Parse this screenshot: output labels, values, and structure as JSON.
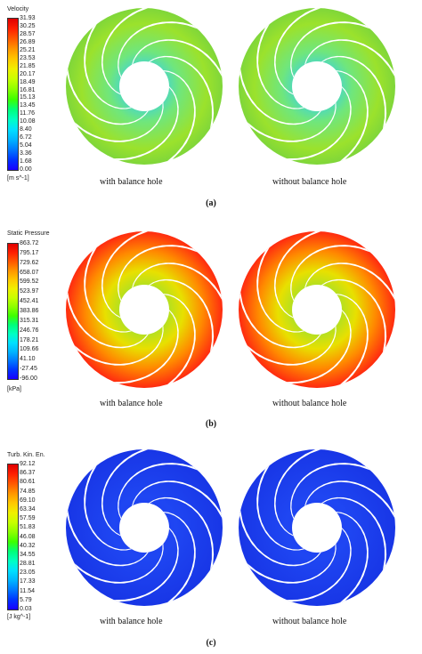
{
  "panels": [
    {
      "label": "(a)",
      "legend_title": "Velocity",
      "unit": "[m s^-1]",
      "ticks": [
        "31.93",
        "30.25",
        "28.57",
        "26.89",
        "25.21",
        "23.53",
        "21.85",
        "20.17",
        "18.49",
        "16.81",
        "15.13",
        "13.45",
        "11.76",
        "10.08",
        "8.40",
        "6.72",
        "5.04",
        "3.36",
        "1.68",
        "0.00"
      ],
      "left_caption": "with balance hole",
      "right_caption": "without balance hole",
      "field": "velocity"
    },
    {
      "label": "(b)",
      "legend_title": "Static Pressure",
      "unit": "[kPa]",
      "ticks": [
        "863.72",
        "795.17",
        "729.62",
        "658.07",
        "599.52",
        "523.97",
        "452.41",
        "383.86",
        "315.31",
        "246.76",
        "178.21",
        "109.66",
        "41.10",
        "-27.45",
        "-96.00"
      ],
      "left_caption": "with balance hole",
      "right_caption": "without balance hole",
      "field": "pressure"
    },
    {
      "label": "(c)",
      "legend_title": "Turb. Kin. En.",
      "unit": "[J kg^-1]",
      "ticks": [
        "92.12",
        "86.37",
        "80.61",
        "74.85",
        "69.10",
        "63.34",
        "57.59",
        "51.83",
        "46.08",
        "40.32",
        "34.55",
        "28.81",
        "23.05",
        "17.33",
        "11.54",
        "5.79",
        "0.03"
      ],
      "left_caption": "with balance hole",
      "right_caption": "without balance hole",
      "field": "tke"
    }
  ],
  "colormap": [
    "#1a00ff",
    "#0033ff",
    "#0077ff",
    "#00b4ff",
    "#00e0ff",
    "#00ffc4",
    "#00ff7a",
    "#3dff00",
    "#8cff00",
    "#c8ff00",
    "#f0f000",
    "#ffc800",
    "#ff9600",
    "#ff5a00",
    "#ff2000",
    "#e00000"
  ]
}
